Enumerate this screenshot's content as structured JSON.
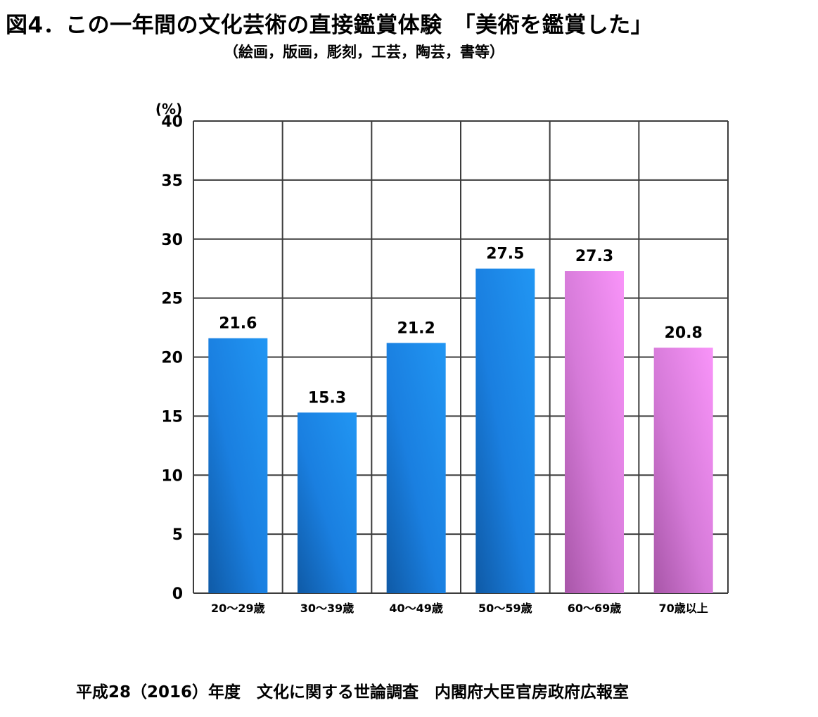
{
  "title": "図4．この一年間の文化芸術の直接鑑賞体験　「美術を鑑賞した」",
  "subtitle": "（絵画，版画，彫刻，工芸，陶芸，書等）",
  "source": "平成28（2016）年度　文化に関する世論調査　内閣府大臣官房政府広報室",
  "colors": {
    "blue": "#1f8ef0",
    "pink": "#f390f3",
    "grid": "#3c3c3c"
  },
  "chart_data": {
    "type": "bar",
    "ylabel": "(%)",
    "ylim": [
      0,
      40
    ],
    "yticks": [
      0,
      5,
      10,
      15,
      20,
      25,
      30,
      35,
      40
    ],
    "grid": true,
    "legend": "none",
    "categories": [
      "20～29歳",
      "30～39歳",
      "40～49歳",
      "50～59歳",
      "60～69歳",
      "70歳以上"
    ],
    "values": [
      21.6,
      15.3,
      21.2,
      27.5,
      27.3,
      20.8
    ],
    "value_labels": [
      "21.6",
      "15.3",
      "21.2",
      "27.5",
      "27.3",
      "20.8"
    ],
    "bar_colors": [
      "blue",
      "blue",
      "blue",
      "blue",
      "pink",
      "pink"
    ]
  }
}
